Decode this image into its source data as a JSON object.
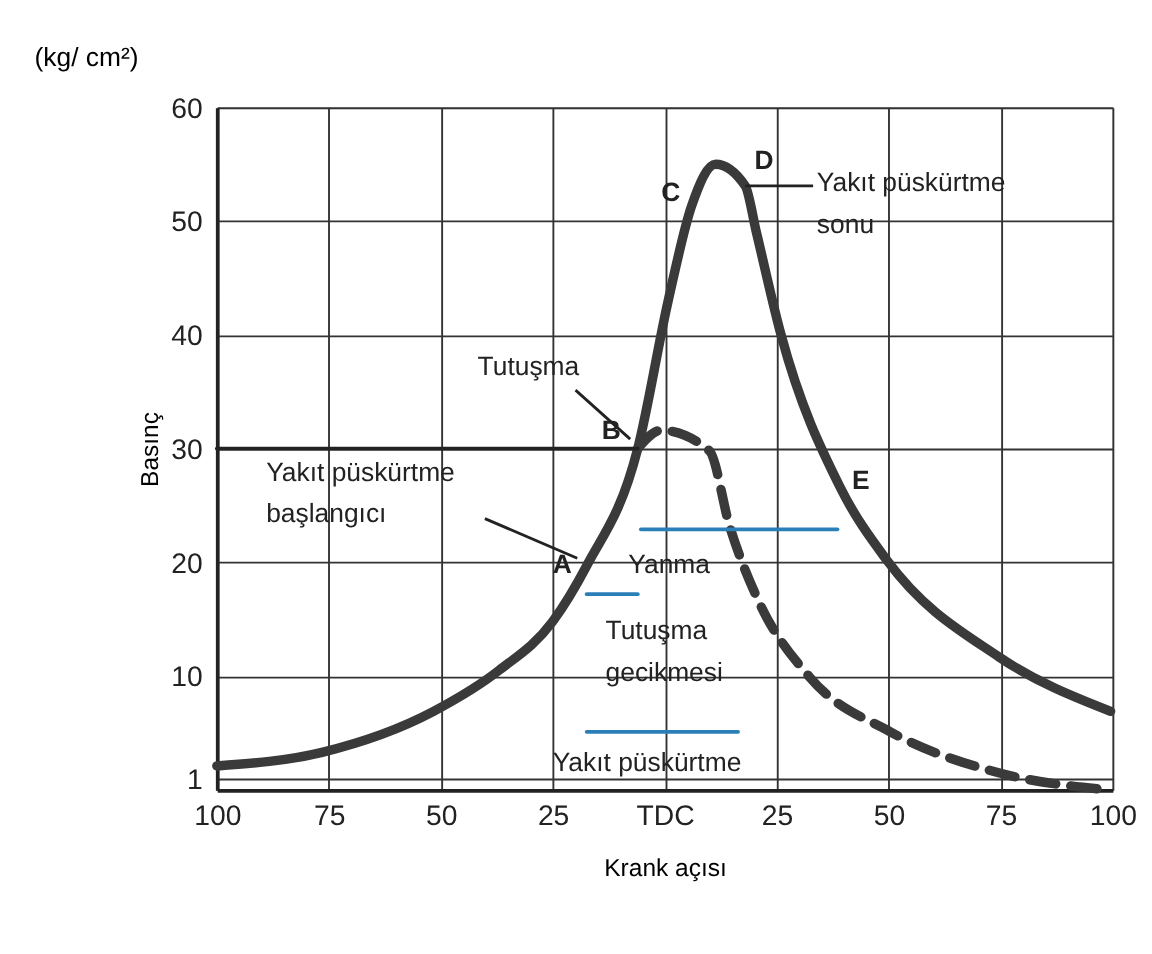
{
  "chart_data": {
    "type": "line",
    "title": "(kg/ cm²)",
    "xlabel": "Krank açısı",
    "ylabel": "Basınç",
    "xlim": [
      -100,
      100
    ],
    "ylim": [
      0,
      60
    ],
    "xticks": [
      {
        "value": -100,
        "label": "100"
      },
      {
        "value": -75,
        "label": "75"
      },
      {
        "value": -50,
        "label": "50"
      },
      {
        "value": -25,
        "label": "25"
      },
      {
        "value": 0,
        "label": "TDC"
      },
      25,
      50,
      75,
      100
    ],
    "yticks": [
      1,
      10,
      20,
      30,
      40,
      50,
      60
    ],
    "grid": true,
    "series": [
      {
        "color": "#3a3a3a",
        "line_style": "solid",
        "x": [
          -100,
          -76.5,
          -51.6,
          -37,
          -25,
          -17.4,
          -6,
          0.8,
          6,
          11.4,
          18,
          20.5,
          26,
          39.2,
          49.6,
          74.6,
          99.6
        ],
        "values": [
          2.1,
          3.3,
          6.9,
          10.5,
          14.8,
          19.7,
          30,
          43,
          51.3,
          55,
          53.1,
          49,
          40,
          26.6,
          20.2,
          11.7,
          6.9
        ]
      },
      {
        "color": "#3a3a3a",
        "line_style": "dashed",
        "x": [
          -6,
          -0.8,
          10,
          14.5,
          20.5,
          32.4,
          50.4,
          74.6,
          98.8
        ],
        "values": [
          30,
          31.6,
          29.8,
          23.2,
          17,
          9.9,
          5.1,
          1.5,
          0
        ]
      },
      {
        "color": "#222222",
        "line_style": "solid",
        "x": [
          -100,
          -6
        ],
        "values": [
          30,
          30
        ]
      },
      {
        "color": "#2a7fb8",
        "line_style": "solid",
        "x": [
          -5.3,
          38.6
        ],
        "values": [
          22.9,
          22.9
        ]
      },
      {
        "color": "#2a7fb8",
        "line_style": "solid",
        "x": [
          -17.4,
          -6
        ],
        "values": [
          17.2,
          17.2
        ]
      },
      {
        "color": "#2a7fb8",
        "line_style": "solid",
        "x": [
          -17.4,
          16.4
        ],
        "values": [
          5.1,
          5.1
        ]
      }
    ],
    "annotations": [
      {
        "text": "A",
        "x": -17.4,
        "y": 19.7
      },
      {
        "text": "B",
        "x": -6,
        "y": 30
      },
      {
        "text": "C",
        "x": 6,
        "y": 51.3
      },
      {
        "text": "D",
        "x": 18,
        "y": 53.1
      },
      {
        "text": "E",
        "x": 39.2,
        "y": 26.6
      },
      {
        "text": "Tutuşma",
        "x": -6,
        "y": 30
      },
      {
        "text": "Yakıt püskürtme\nbaşlangıcı",
        "x": -17.4,
        "y": 19.7
      },
      {
        "text": "Yakıt püskürtme\nsonu",
        "x": 18,
        "y": 53.1
      },
      {
        "text": "Yanma",
        "x": -5.3,
        "y": 22.9
      },
      {
        "text": "Tutuşma\ngecikmesi",
        "x": -17.4,
        "y": 17.2
      },
      {
        "text": "Yakıt püskürtme",
        "x": -17.4,
        "y": 5.1
      }
    ]
  }
}
